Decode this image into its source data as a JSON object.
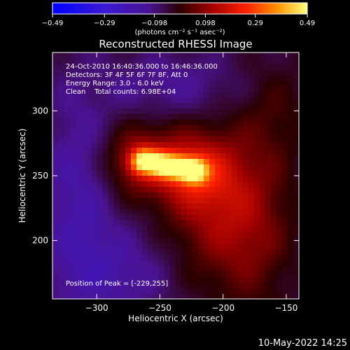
{
  "chart_data": {
    "type": "heatmap",
    "title": "Reconstructed RHESSI Image",
    "xlabel": "Heliocentric X (arcsec)",
    "ylabel": "Heliocentric Y (arcsec)",
    "xlim": [
      -335,
      -140
    ],
    "ylim": [
      155,
      345
    ],
    "x_ticks": [
      -300,
      -250,
      -200,
      -150
    ],
    "y_ticks": [
      200,
      250,
      300
    ],
    "x_tick_labels": [
      "−300",
      "−250",
      "−200",
      "−150"
    ],
    "y_tick_labels": [
      "200",
      "250",
      "300"
    ],
    "colorbar": {
      "range": [
        -0.49,
        0.49
      ],
      "ticks": [
        -0.49,
        -0.29,
        -0.098,
        0.098,
        0.29,
        0.49
      ],
      "tick_labels": [
        "−0.49",
        "−0.29",
        "−0.098",
        "0.098",
        "0.29",
        "0.49"
      ],
      "unit_label": "(photons cm⁻² s⁻¹ asec⁻²)"
    },
    "annotations": [
      "24-Oct-2010 16:40:36.000 to 16:46:36.000",
      "Detectors: 3F 4F 5F 6F 7F 8F, Att 0",
      "Energy Range: 3.0 - 6.0 keV",
      "Clean    Total counts: 6.98E+04"
    ],
    "peak_label": "Position of Peak = [-229,255]",
    "peak": {
      "x": -229,
      "y": 255,
      "value": 0.49
    },
    "source_elongation": {
      "from": [
        -262,
        261
      ],
      "to": [
        -224,
        254
      ]
    }
  },
  "footer_date": "10-May-2022 14:25"
}
